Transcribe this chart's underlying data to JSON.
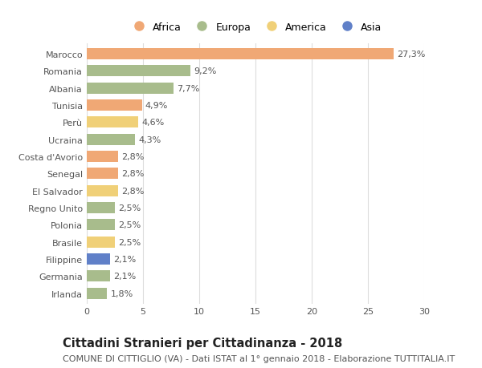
{
  "countries": [
    "Marocco",
    "Romania",
    "Albania",
    "Tunisia",
    "Perù",
    "Ucraina",
    "Costa d'Avorio",
    "Senegal",
    "El Salvador",
    "Regno Unito",
    "Polonia",
    "Brasile",
    "Filippine",
    "Germania",
    "Irlanda"
  ],
  "values": [
    27.3,
    9.2,
    7.7,
    4.9,
    4.6,
    4.3,
    2.8,
    2.8,
    2.8,
    2.5,
    2.5,
    2.5,
    2.1,
    2.1,
    1.8
  ],
  "labels": [
    "27,3%",
    "9,2%",
    "7,7%",
    "4,9%",
    "4,6%",
    "4,3%",
    "2,8%",
    "2,8%",
    "2,8%",
    "2,5%",
    "2,5%",
    "2,5%",
    "2,1%",
    "2,1%",
    "1,8%"
  ],
  "continents": [
    "Africa",
    "Europa",
    "Europa",
    "Africa",
    "America",
    "Europa",
    "Africa",
    "Africa",
    "America",
    "Europa",
    "Europa",
    "America",
    "Asia",
    "Europa",
    "Europa"
  ],
  "continent_colors": {
    "Africa": "#F0A875",
    "Europa": "#A8BC8C",
    "America": "#F0D078",
    "Asia": "#6080C8"
  },
  "legend_order": [
    "Africa",
    "Europa",
    "America",
    "Asia"
  ],
  "title": "Cittadini Stranieri per Cittadinanza - 2018",
  "subtitle": "COMUNE DI CITTIGLIO (VA) - Dati ISTAT al 1° gennaio 2018 - Elaborazione TUTTITALIA.IT",
  "xlim": [
    0,
    30
  ],
  "xticks": [
    0,
    5,
    10,
    15,
    20,
    25,
    30
  ],
  "background_color": "#ffffff",
  "grid_color": "#dddddd",
  "bar_height": 0.65,
  "label_fontsize": 8.0,
  "title_fontsize": 10.5,
  "subtitle_fontsize": 8.0,
  "tick_fontsize": 8.0,
  "legend_fontsize": 9.0
}
